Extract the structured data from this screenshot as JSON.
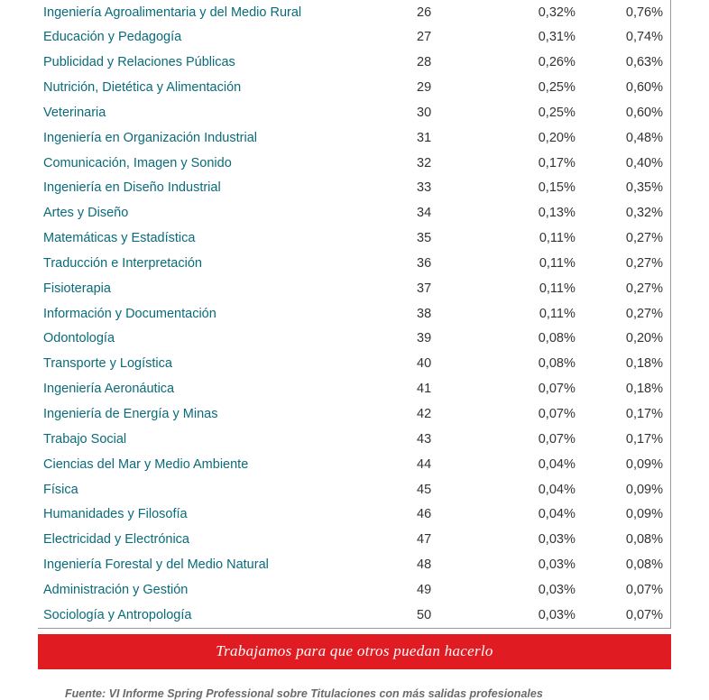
{
  "table": {
    "columns": [
      "name",
      "rank",
      "pct1",
      "pct2"
    ],
    "name_color": "#0a6b7a",
    "value_color": "#333333",
    "border_color": "#999999",
    "font_size": 14.5,
    "rows": [
      [
        "Ingeniería Agroalimentaria y del Medio Rural",
        "26",
        "0,32%",
        "0,76%"
      ],
      [
        "Educación y Pedagogía",
        "27",
        "0,31%",
        "0,74%"
      ],
      [
        "Publicidad y Relaciones Públicas",
        "28",
        "0,26%",
        "0,63%"
      ],
      [
        "Nutrición, Dietética y Alimentación",
        "29",
        "0,25%",
        "0,60%"
      ],
      [
        "Veterinaria",
        "30",
        "0,25%",
        "0,60%"
      ],
      [
        "Ingeniería en Organización Industrial",
        "31",
        "0,20%",
        "0,48%"
      ],
      [
        "Comunicación, Imagen y Sonido",
        "32",
        "0,17%",
        "0,40%"
      ],
      [
        "Ingeniería en Diseño Industrial",
        "33",
        "0,15%",
        "0,35%"
      ],
      [
        "Artes y Diseño",
        "34",
        "0,13%",
        "0,32%"
      ],
      [
        "Matemáticas y Estadística",
        "35",
        "0,11%",
        "0,27%"
      ],
      [
        "Traducción e Interpretación",
        "36",
        "0,11%",
        "0,27%"
      ],
      [
        "Fisioterapia",
        "37",
        "0,11%",
        "0,27%"
      ],
      [
        "Información y Documentación",
        "38",
        "0,11%",
        "0,27%"
      ],
      [
        "Odontología",
        "39",
        "0,08%",
        "0,20%"
      ],
      [
        "Transporte y Logística",
        "40",
        "0,08%",
        "0,18%"
      ],
      [
        "Ingeniería Aeronáutica",
        "41",
        "0,07%",
        "0,18%"
      ],
      [
        "Ingeniería de Energía y Minas",
        "42",
        "0,07%",
        "0,17%"
      ],
      [
        "Trabajo Social",
        "43",
        "0,07%",
        "0,17%"
      ],
      [
        "Ciencias del Mar y Medio Ambiente",
        "44",
        "0,04%",
        "0,09%"
      ],
      [
        "Física",
        "45",
        "0,04%",
        "0,09%"
      ],
      [
        "Humanidades y Filosofía",
        "46",
        "0,04%",
        "0,09%"
      ],
      [
        "Electricidad y Electrónica",
        "47",
        "0,03%",
        "0,08%"
      ],
      [
        "Ingeniería Forestal y del Medio Natural",
        "48",
        "0,03%",
        "0,08%"
      ],
      [
        "Administración y Gestión",
        "49",
        "0,03%",
        "0,07%"
      ],
      [
        "Sociología y Antropología",
        "50",
        "0,03%",
        "0,07%"
      ]
    ]
  },
  "banner": {
    "text": "Trabajamos para que otros puedan hacerlo",
    "bg_color": "#e11b22",
    "text_color": "#ffffff"
  },
  "fuente": {
    "label": "Fuente:  VI Informe Spring Professional sobre Titulaciones con más salidas profesionales",
    "color": "#6a6a6a"
  }
}
